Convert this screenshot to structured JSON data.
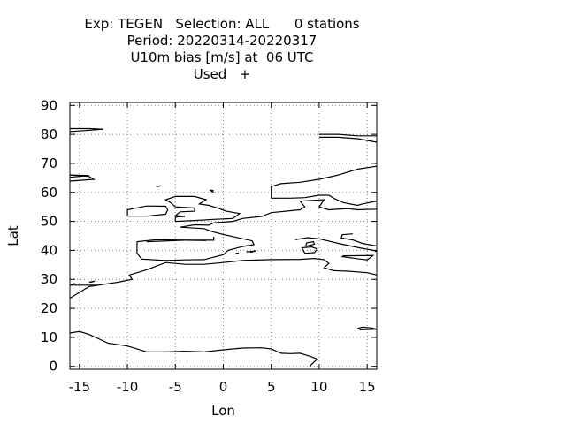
{
  "header": {
    "line1": "Exp: TEGEN   Selection: ALL      0 stations",
    "line2": "Period: 20220314-20220317",
    "line3": "U10m bias [m/s] at  06 UTC",
    "line4": "Used   +"
  },
  "chart_data": {
    "type": "map",
    "xlabel": "Lon",
    "ylabel": "Lat",
    "xlim": [
      -16,
      16
    ],
    "ylim": [
      -1,
      91
    ],
    "x_ticks": [
      -15,
      -10,
      -5,
      0,
      5,
      10,
      15
    ],
    "x_tick_labels": [
      "-15",
      "-10",
      "-5",
      "0",
      "5",
      "10",
      "15"
    ],
    "y_ticks": [
      0,
      10,
      20,
      30,
      40,
      50,
      60,
      70,
      80,
      90
    ],
    "y_tick_labels": [
      "0",
      "10",
      "20",
      "30",
      "40",
      "50",
      "60",
      "70",
      "80",
      "90"
    ],
    "grid": true,
    "grid_style": "dotted",
    "stations_plotted": 0,
    "coastlines": [
      [
        [
          -16,
          82
        ],
        [
          -14,
          82
        ],
        [
          -12.5,
          81.8
        ],
        [
          -15,
          81.2
        ],
        [
          -16,
          81
        ]
      ],
      [
        [
          -16,
          66
        ],
        [
          -14,
          65.8
        ],
        [
          -16,
          65.2
        ]
      ],
      [
        [
          -16,
          23.5
        ],
        [
          -15,
          25.5
        ],
        [
          -14,
          27.5
        ],
        [
          -13,
          28
        ],
        [
          -11,
          29
        ],
        [
          -9.5,
          30
        ],
        [
          -9.8,
          31.5
        ],
        [
          -8,
          33.3
        ],
        [
          -6,
          35.8
        ],
        [
          -4,
          35.2
        ],
        [
          -2,
          35.2
        ],
        [
          0,
          35.8
        ],
        [
          2,
          36.5
        ],
        [
          5,
          36.8
        ],
        [
          8,
          36.9
        ],
        [
          9.5,
          37.2
        ],
        [
          10.5,
          36.8
        ],
        [
          11,
          35.5
        ],
        [
          10.5,
          34
        ],
        [
          11.5,
          33
        ],
        [
          13,
          32.8
        ],
        [
          15,
          32.3
        ],
        [
          16,
          31.5
        ]
      ],
      [
        [
          -16,
          11.5
        ],
        [
          -15,
          12
        ],
        [
          -14,
          11
        ],
        [
          -13,
          9.5
        ],
        [
          -12,
          8
        ],
        [
          -10,
          7
        ],
        [
          -8,
          5
        ],
        [
          -6,
          5
        ],
        [
          -4,
          5.2
        ],
        [
          -2,
          5
        ],
        [
          0,
          5.7
        ],
        [
          2,
          6.3
        ],
        [
          4,
          6.4
        ],
        [
          5,
          6
        ],
        [
          6,
          4.5
        ],
        [
          7,
          4.4
        ],
        [
          8,
          4.5
        ],
        [
          9,
          3.5
        ],
        [
          9.8,
          2.5
        ],
        [
          9.3,
          1
        ],
        [
          9,
          0
        ]
      ],
      [
        [
          -9,
          43
        ],
        [
          -9,
          39
        ],
        [
          -8.5,
          37
        ],
        [
          -6,
          36.5
        ],
        [
          -4,
          36.7
        ],
        [
          -2,
          36.8
        ],
        [
          0,
          38.5
        ],
        [
          0.5,
          40
        ],
        [
          2,
          41.3
        ],
        [
          3.2,
          42
        ],
        [
          3,
          43.3
        ],
        [
          0,
          45.5
        ],
        [
          -1.2,
          46.5
        ],
        [
          -2,
          47.5
        ],
        [
          -4.5,
          48
        ],
        [
          -3,
          48.8
        ],
        [
          -1.5,
          48.7
        ],
        [
          -1,
          49.5
        ],
        [
          1,
          50
        ],
        [
          2,
          51
        ],
        [
          4,
          51.7
        ],
        [
          5,
          53
        ],
        [
          8,
          54
        ],
        [
          8.5,
          55
        ],
        [
          8,
          57
        ],
        [
          10.5,
          57.5
        ],
        [
          10,
          55
        ],
        [
          11,
          54
        ],
        [
          13,
          54.4
        ],
        [
          14,
          54
        ],
        [
          16,
          54.2
        ]
      ],
      [
        [
          -9,
          43
        ],
        [
          -7,
          43.7
        ],
        [
          -4,
          43.5
        ],
        [
          -1.8,
          43.4
        ]
      ],
      [
        [
          -5,
          50
        ],
        [
          -3,
          50.3
        ],
        [
          -1,
          50.7
        ],
        [
          1,
          51
        ],
        [
          1.7,
          52.7
        ],
        [
          0.3,
          53.5
        ],
        [
          -0.5,
          54.5
        ],
        [
          -1.5,
          55.5
        ],
        [
          -2.5,
          56
        ],
        [
          -1.8,
          57.5
        ],
        [
          -3,
          58.6
        ],
        [
          -5,
          58.6
        ],
        [
          -6,
          57.5
        ],
        [
          -5.5,
          56.5
        ],
        [
          -5,
          55
        ],
        [
          -3,
          54.6
        ],
        [
          -3,
          53.5
        ],
        [
          -4.5,
          53.3
        ],
        [
          -5,
          52
        ],
        [
          -4,
          51.7
        ],
        [
          -5,
          51.5
        ],
        [
          -5,
          50
        ]
      ],
      [
        [
          -10,
          51.8
        ],
        [
          -10,
          54
        ],
        [
          -8,
          55.3
        ],
        [
          -6,
          55.2
        ],
        [
          -5.8,
          54
        ],
        [
          -6,
          52.5
        ],
        [
          -8,
          51.8
        ],
        [
          -10,
          51.8
        ]
      ],
      [
        [
          -7,
          62
        ],
        [
          -6.5,
          62.3
        ],
        [
          -6.8,
          62
        ]
      ],
      [
        [
          -1,
          60
        ],
        [
          -1.4,
          60.8
        ],
        [
          -1,
          60.6
        ]
      ],
      [
        [
          5,
          58
        ],
        [
          5,
          60
        ],
        [
          5,
          62
        ],
        [
          6,
          63
        ],
        [
          8,
          63.5
        ],
        [
          10,
          64.5
        ],
        [
          12,
          66
        ],
        [
          14,
          68
        ],
        [
          16,
          69
        ]
      ],
      [
        [
          5,
          58
        ],
        [
          7,
          58
        ],
        [
          8.5,
          58.2
        ],
        [
          10,
          59
        ],
        [
          11,
          59
        ]
      ],
      [
        [
          11,
          59
        ],
        [
          11.5,
          58
        ],
        [
          12.5,
          56.5
        ],
        [
          14,
          55.5
        ],
        [
          14.5,
          56
        ],
        [
          16,
          57
        ]
      ],
      [
        [
          -24,
          64
        ],
        [
          -22,
          66
        ],
        [
          -18,
          66.5
        ],
        [
          -14,
          65.5
        ],
        [
          -13.5,
          64.5
        ],
        [
          -18,
          63.4
        ],
        [
          -22,
          63.8
        ]
      ],
      [
        [
          -8,
          43
        ],
        [
          -4,
          43.5
        ],
        [
          -1,
          43.5
        ],
        [
          -1,
          44.7
        ]
      ],
      [
        [
          7.5,
          43.7
        ],
        [
          8.8,
          44.4
        ],
        [
          10,
          44
        ],
        [
          12,
          42.4
        ],
        [
          14,
          41
        ],
        [
          15.7,
          40
        ],
        [
          16,
          39.5
        ]
      ],
      [
        [
          16,
          41.5
        ],
        [
          14.5,
          42.4
        ],
        [
          13.5,
          43.6
        ],
        [
          12.3,
          44.3
        ],
        [
          12.4,
          45.4
        ],
        [
          13.5,
          45.7
        ]
      ],
      [
        [
          12.5,
          38.1
        ],
        [
          15.6,
          38.2
        ],
        [
          15,
          36.7
        ],
        [
          14.3,
          37
        ],
        [
          12.4,
          37.8
        ],
        [
          12.5,
          38.1
        ]
      ],
      [
        [
          8.5,
          39
        ],
        [
          9.5,
          39.2
        ],
        [
          9.8,
          40.5
        ],
        [
          9.2,
          41.2
        ],
        [
          8.2,
          40.9
        ],
        [
          8.5,
          39
        ]
      ],
      [
        [
          8.6,
          41.4
        ],
        [
          9.5,
          42.1
        ],
        [
          9.4,
          43
        ],
        [
          8.7,
          42.6
        ],
        [
          8.6,
          41.4
        ]
      ],
      [
        [
          1.2,
          38.7
        ],
        [
          1.6,
          39.1
        ],
        [
          1.3,
          38.9
        ]
      ],
      [
        [
          2.4,
          39.5
        ],
        [
          3.4,
          39.8
        ],
        [
          2.8,
          39.3
        ]
      ],
      [
        [
          -13,
          28
        ],
        [
          -16,
          28
        ],
        [
          -15.5,
          28.6
        ]
      ],
      [
        [
          -14,
          29
        ],
        [
          -13.4,
          29.4
        ],
        [
          -13.8,
          29
        ]
      ],
      [
        [
          14,
          13
        ],
        [
          14.5,
          13.5
        ],
        [
          15.5,
          13.2
        ],
        [
          16,
          12.8
        ],
        [
          14.2,
          12.6
        ]
      ],
      [
        [
          10,
          80
        ],
        [
          12,
          80
        ],
        [
          14,
          79.5
        ],
        [
          16,
          79.5
        ]
      ],
      [
        [
          10,
          79
        ],
        [
          12,
          79
        ],
        [
          14,
          78.5
        ],
        [
          16,
          77.3
        ]
      ]
    ]
  }
}
